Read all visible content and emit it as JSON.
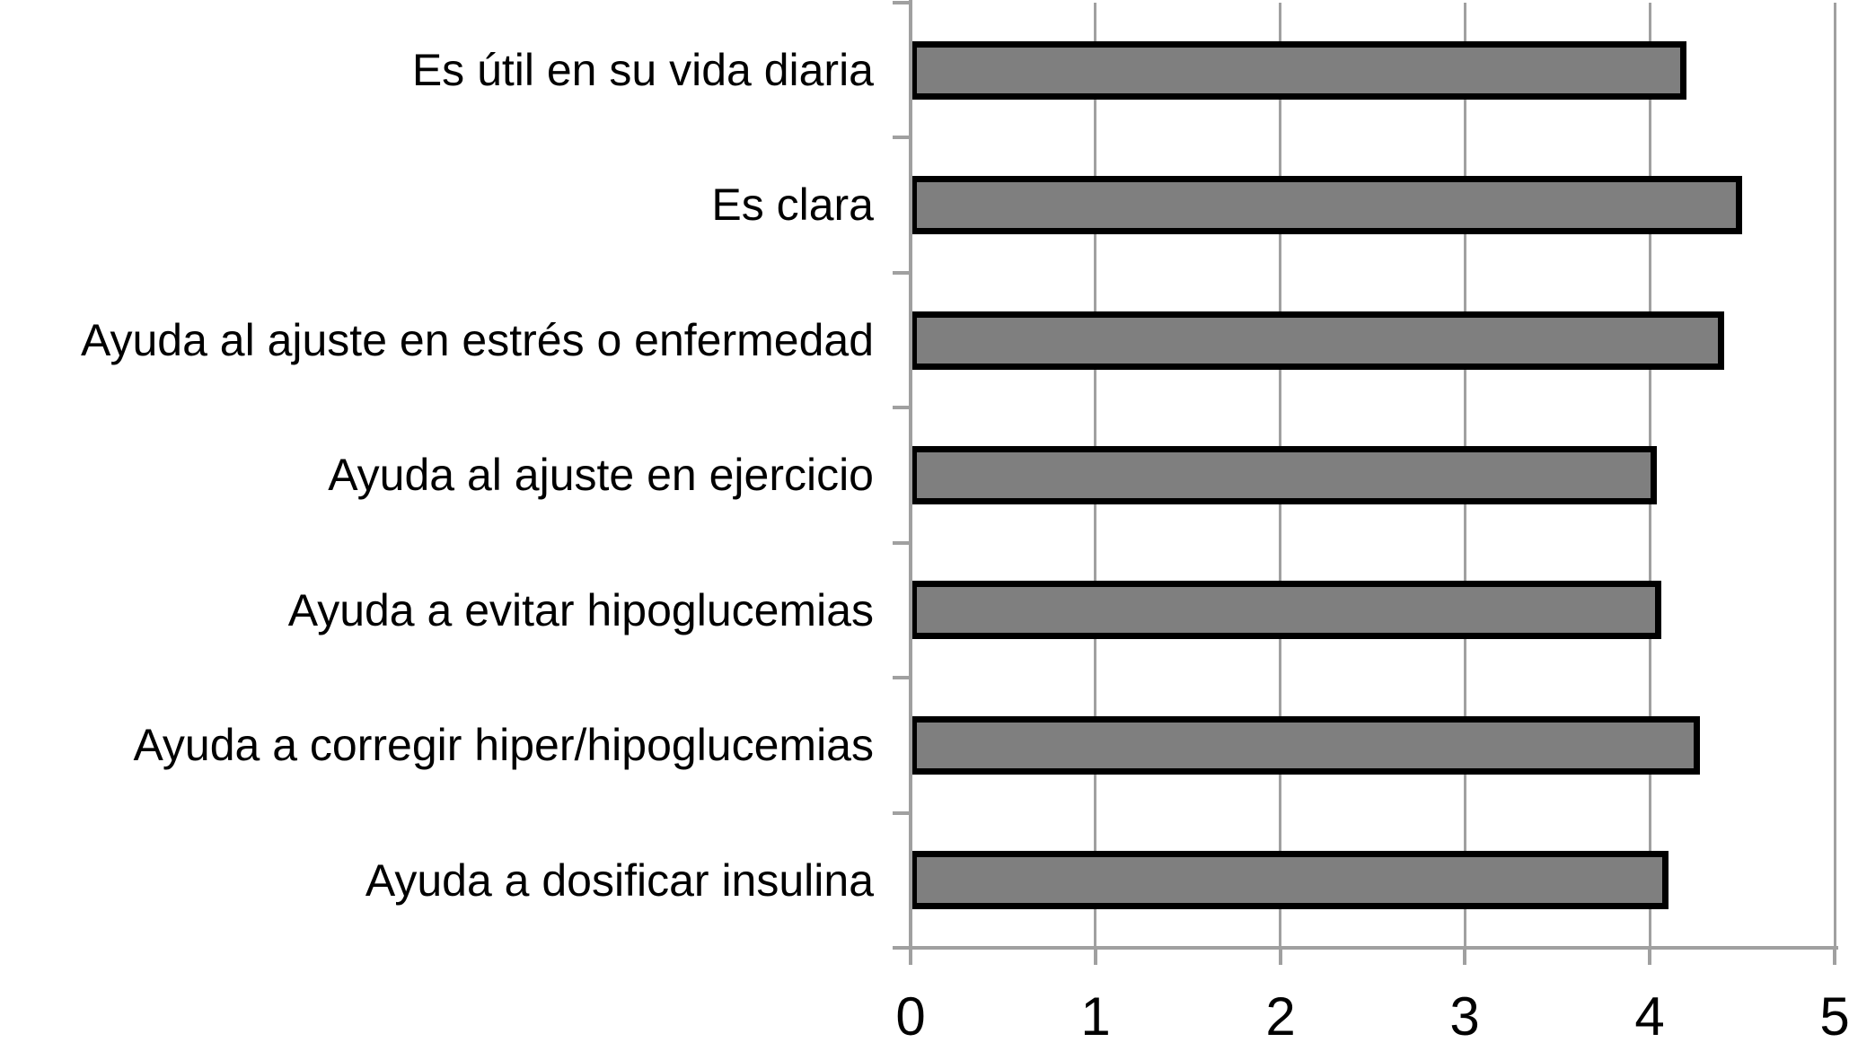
{
  "chart_data": {
    "type": "bar",
    "orientation": "horizontal",
    "title": "",
    "xlabel": "",
    "ylabel": "",
    "categories": [
      "Es útil en su vida diaria",
      "Es clara",
      "Ayuda al ajuste en estrés o enfermedad",
      "Ayuda al ajuste en ejercicio",
      "Ayuda a evitar hipoglucemias",
      "Ayuda a corregir hiper/hipoglucemias",
      "Ayuda a dosificar insulina"
    ],
    "values": [
      4.2,
      4.5,
      4.4,
      4.04,
      4.06,
      4.27,
      4.1
    ],
    "xlim": [
      0,
      5
    ],
    "xticks": [
      0,
      1,
      2,
      3,
      4,
      5
    ],
    "xticklabels": [
      "0",
      "1",
      "2",
      "3",
      "4",
      "5"
    ],
    "grid": true,
    "legend": false,
    "colors": {
      "bar_fill": "#7f7f7f",
      "bar_border": "#000000",
      "grid_line": "#a0a0a0",
      "text": "#000000",
      "background": "#ffffff"
    }
  }
}
